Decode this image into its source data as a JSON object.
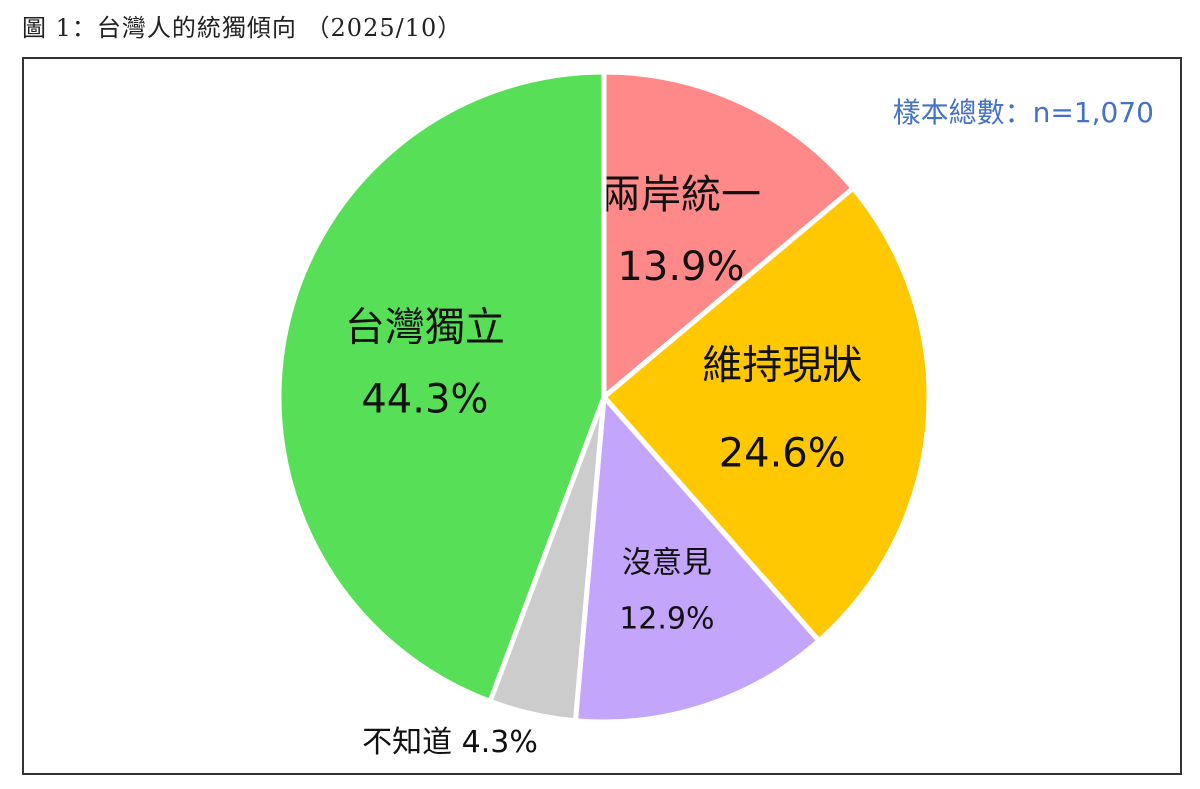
{
  "figure_title": "圖 1：台灣人的統獨傾向 （2025/10）",
  "sample_note": "樣本總數：n=1,070",
  "chart_data": {
    "type": "pie",
    "title": "",
    "slices": [
      {
        "name": "兩岸統一",
        "value": 13.9,
        "label_value": "13.9%",
        "color": "#ff8888"
      },
      {
        "name": "維持現狀",
        "value": 24.6,
        "label_value": "24.6%",
        "color": "#ffc800"
      },
      {
        "name": "沒意見",
        "value": 12.9,
        "label_value": "12.9%",
        "color": "#c3a6fb"
      },
      {
        "name": "不知道",
        "value": 4.3,
        "label_value": "4.3%",
        "color": "#cccccc"
      },
      {
        "name": "台灣獨立",
        "value": 44.3,
        "label_value": "44.3%",
        "color": "#57e057"
      }
    ],
    "start_angle": "12 o'clock, clockwise",
    "legend": "none (labels on slices)"
  }
}
